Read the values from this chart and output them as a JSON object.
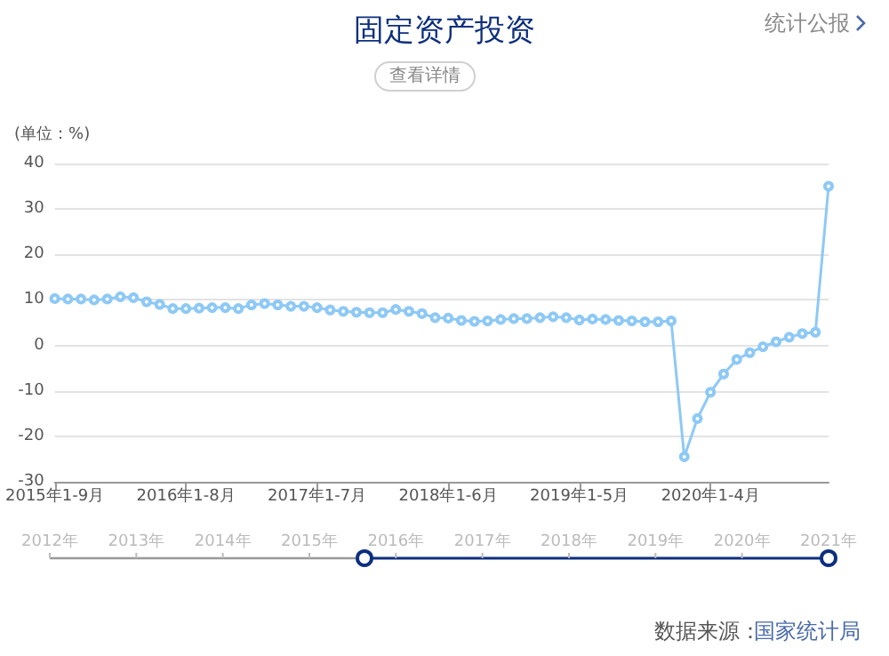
{
  "chart_data": {
    "type": "line",
    "title": "固定资产投资",
    "ylabel": "(单位：%)",
    "annotations": [
      "查看详情",
      "统计公报",
      "2012年",
      "2013年",
      "2014年",
      "2015年",
      "2016年",
      "2017年",
      "2018年",
      "2019年",
      "2020年",
      "2021年",
      "数据来源：",
      "国家统计局"
    ],
    "categories": [
      "2015年1-9月",
      null,
      null,
      null,
      null,
      null,
      null,
      null,
      null,
      null,
      "2016年1-8月",
      null,
      null,
      null,
      null,
      null,
      null,
      null,
      null,
      null,
      "2017年1-7月",
      null,
      null,
      null,
      null,
      null,
      null,
      null,
      null,
      null,
      "2018年1-6月",
      null,
      null,
      null,
      null,
      null,
      null,
      null,
      null,
      null,
      "2019年1-5月",
      null,
      null,
      null,
      null,
      null,
      null,
      null,
      null,
      null,
      "2020年1-4月",
      null,
      null,
      null,
      null,
      null,
      null,
      null,
      null,
      null
    ],
    "series": [
      {
        "color": "#8ec9f5",
        "values": [
          10.3,
          10.2,
          10.2,
          10.0,
          10.2,
          10.7,
          10.5,
          9.6,
          9.0,
          8.1,
          8.1,
          8.2,
          8.3,
          8.3,
          8.1,
          8.9,
          9.2,
          8.9,
          8.6,
          8.6,
          8.3,
          7.8,
          7.5,
          7.3,
          7.2,
          7.2,
          7.9,
          7.5,
          7.0,
          6.1,
          6.0,
          5.5,
          5.3,
          5.4,
          5.7,
          5.9,
          5.9,
          6.1,
          6.3,
          6.1,
          5.6,
          5.8,
          5.7,
          5.5,
          5.4,
          5.2,
          5.2,
          5.4,
          -24.5,
          -16.1,
          -10.3,
          -6.3,
          -3.1,
          -1.6,
          -0.3,
          0.8,
          1.8,
          2.6,
          2.9,
          35.0
        ]
      }
    ],
    "ylim": [
      -30,
      40
    ],
    "yticks": [
      -30,
      -20,
      -10,
      0,
      10,
      20,
      30,
      40
    ],
    "grid": "y",
    "marker": "circle",
    "line_style": "solid"
  }
}
